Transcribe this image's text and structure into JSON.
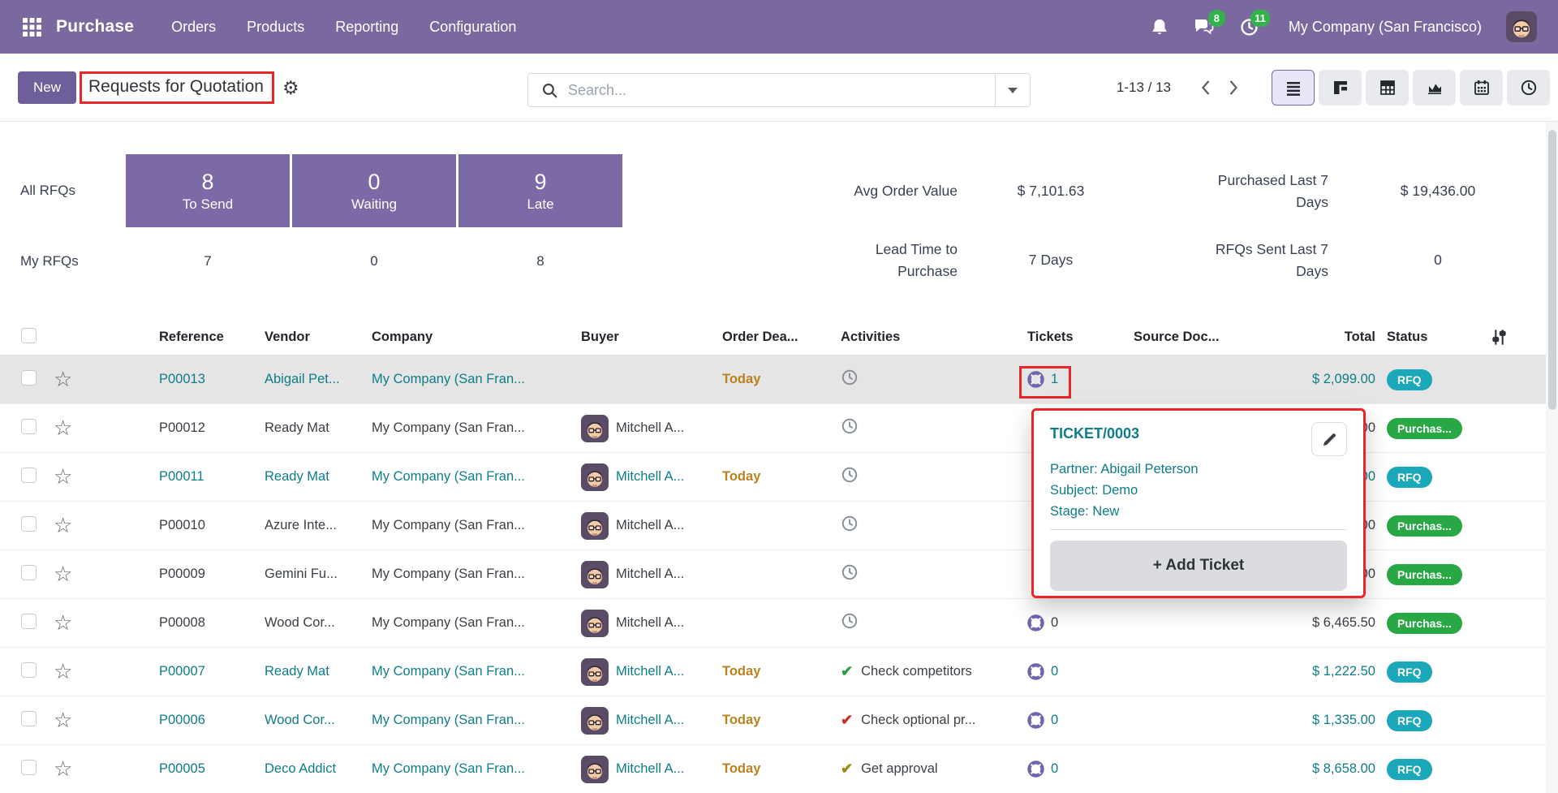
{
  "nav": {
    "app_name": "Purchase",
    "menus": [
      "Orders",
      "Products",
      "Reporting",
      "Configuration"
    ],
    "messages_badge": "8",
    "activities_badge": "11",
    "company": "My Company (San Francisco)"
  },
  "control": {
    "new_label": "New",
    "title": "Requests for Quotation",
    "search_placeholder": "Search...",
    "pager": "1-13 / 13"
  },
  "dashboard": {
    "kpi": {
      "all_label": "All RFQs",
      "my_label": "My RFQs",
      "boxes": [
        {
          "count": "8",
          "label": "To Send",
          "my": "7"
        },
        {
          "count": "0",
          "label": "Waiting",
          "my": "0"
        },
        {
          "count": "9",
          "label": "Late",
          "my": "8"
        }
      ]
    },
    "stats": [
      {
        "label": "Avg Order Value",
        "value": "$ 7,101.63"
      },
      {
        "label": "Lead Time to Purchase",
        "value": "7 Days"
      },
      {
        "label": "Purchased Last 7 Days",
        "value": "$ 19,436.00"
      },
      {
        "label": "RFQs Sent Last 7 Days",
        "value": "0"
      }
    ]
  },
  "table": {
    "columns": [
      "Reference",
      "Vendor",
      "Company",
      "Buyer",
      "Order Dea...",
      "Activities",
      "Tickets",
      "Source Doc...",
      "Total",
      "Status"
    ],
    "rows": [
      {
        "reference": "P00013",
        "vendor": "Abigail Pet...",
        "company": "My Company (San Fran...",
        "buyer": "",
        "deadline": "Today",
        "activity": {
          "type": "clock",
          "color": "",
          "text": ""
        },
        "tickets": "1",
        "total": "$ 2,099.00",
        "status": "RFQ",
        "status_type": "rfq",
        "style": "teal",
        "highlight": true
      },
      {
        "reference": "P00012",
        "vendor": "Ready Mat",
        "company": "My Company (San Fran...",
        "buyer": "Mitchell A...",
        "deadline": "",
        "activity": {
          "type": "clock",
          "color": "",
          "text": ""
        },
        "tickets": "",
        "total": "00",
        "status": "Purchas...",
        "status_type": "purchase",
        "style": "dark",
        "highlight": false
      },
      {
        "reference": "P00011",
        "vendor": "Ready Mat",
        "company": "My Company (San Fran...",
        "buyer": "Mitchell A...",
        "deadline": "Today",
        "activity": {
          "type": "clock",
          "color": "",
          "text": ""
        },
        "tickets": "",
        "total": "00",
        "status": "RFQ",
        "status_type": "rfq",
        "style": "teal",
        "highlight": false
      },
      {
        "reference": "P00010",
        "vendor": "Azure Inte...",
        "company": "My Company (San Fran...",
        "buyer": "Mitchell A...",
        "deadline": "",
        "activity": {
          "type": "clock",
          "color": "",
          "text": ""
        },
        "tickets": "",
        "total": "00",
        "status": "Purchas...",
        "status_type": "purchase",
        "style": "dark",
        "highlight": false
      },
      {
        "reference": "P00009",
        "vendor": "Gemini Fu...",
        "company": "My Company (San Fran...",
        "buyer": "Mitchell A...",
        "deadline": "",
        "activity": {
          "type": "clock",
          "color": "",
          "text": ""
        },
        "tickets": "",
        "total": "00",
        "status": "Purchas...",
        "status_type": "purchase",
        "style": "dark",
        "highlight": false
      },
      {
        "reference": "P00008",
        "vendor": "Wood Cor...",
        "company": "My Company (San Fran...",
        "buyer": "Mitchell A...",
        "deadline": "",
        "activity": {
          "type": "clock",
          "color": "",
          "text": ""
        },
        "tickets": "0",
        "total": "$ 6,465.50",
        "status": "Purchas...",
        "status_type": "purchase",
        "style": "dark",
        "highlight": false
      },
      {
        "reference": "P00007",
        "vendor": "Ready Mat",
        "company": "My Company (San Fran...",
        "buyer": "Mitchell A...",
        "deadline": "Today",
        "activity": {
          "type": "check",
          "color": "green",
          "text": "Check competitors"
        },
        "tickets": "0",
        "total": "$ 1,222.50",
        "status": "RFQ",
        "status_type": "rfq",
        "style": "teal",
        "highlight": false
      },
      {
        "reference": "P00006",
        "vendor": "Wood Cor...",
        "company": "My Company (San Fran...",
        "buyer": "Mitchell A...",
        "deadline": "Today",
        "activity": {
          "type": "check",
          "color": "red",
          "text": "Check optional pr..."
        },
        "tickets": "0",
        "total": "$ 1,335.00",
        "status": "RFQ",
        "status_type": "rfq",
        "style": "teal",
        "highlight": false
      },
      {
        "reference": "P00005",
        "vendor": "Deco Addict",
        "company": "My Company (San Fran...",
        "buyer": "Mitchell A...",
        "deadline": "Today",
        "activity": {
          "type": "check",
          "color": "olive",
          "text": "Get approval"
        },
        "tickets": "0",
        "total": "$ 8,658.00",
        "status": "RFQ",
        "status_type": "rfq",
        "style": "teal",
        "highlight": false
      }
    ]
  },
  "popup": {
    "title": "TICKET/0003",
    "partner": "Partner: Abigail Peterson",
    "subject": "Subject: Demo",
    "stage": "Stage: New",
    "add_label": "+ Add Ticket"
  },
  "colors": {
    "purple": "#7a699e",
    "purple-dark": "#6e5f9b",
    "purple-box": "#7b6aa5",
    "teal": "#0e7d87",
    "badge-teal": "#1ba8ba",
    "green": "#28a745",
    "amber": "#b8821e",
    "red": "#e8252a",
    "ticket-purple": "#7164ae",
    "check-green": "#2e9e44",
    "check-red": "#c9302c",
    "check-olive": "#9a8a13"
  }
}
